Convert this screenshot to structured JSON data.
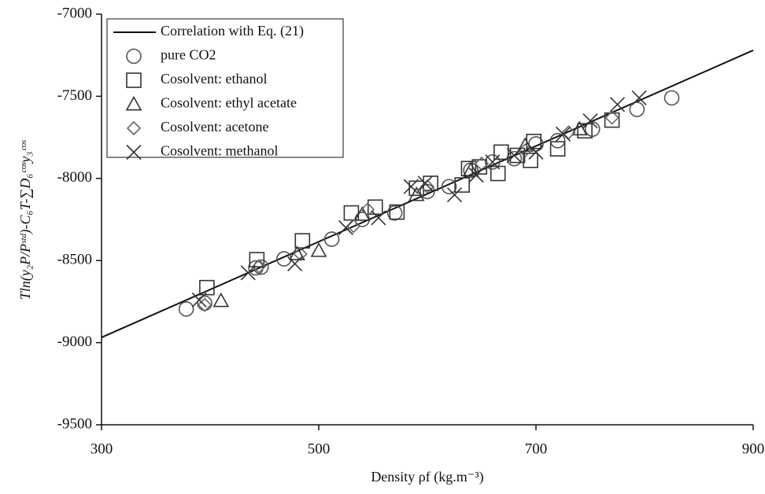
{
  "chart_data": {
    "type": "scatter",
    "xlabel": "Density ρf (kg.m⁻³)",
    "ylabel": "Tln(y₂P/Pˢᵗᵈ)-C₆T-∑D₆ᶜᵒˢy₃ᶜᵒˢ",
    "xlim": [
      300,
      900
    ],
    "xticks": [
      300,
      500,
      700,
      900
    ],
    "ylim": [
      -9500,
      -7000
    ],
    "yticks": [
      -9500,
      -9000,
      -8500,
      -8000,
      -7500,
      -7000
    ],
    "line": {
      "name": "Correlation with Eq. (21)",
      "color": "#111111",
      "x": [
        300,
        900
      ],
      "y": [
        -8968,
        -7220
      ]
    },
    "series": [
      {
        "name": "pure CO2",
        "marker": "circle",
        "color": "#555555",
        "x": [
          378,
          395,
          442,
          447,
          468,
          512,
          540,
          570,
          600,
          620,
          640,
          660,
          680,
          700,
          720,
          752,
          793,
          825
        ],
        "y": [
          -8795,
          -8760,
          -8545,
          -8540,
          -8490,
          -8370,
          -8250,
          -8210,
          -8080,
          -8050,
          -7950,
          -7900,
          -7880,
          -7790,
          -7770,
          -7700,
          -7580,
          -7510
        ]
      },
      {
        "name": "Cosolvent: ethanol",
        "marker": "square",
        "color": "#333333",
        "x": [
          397,
          443,
          485,
          530,
          552,
          572,
          590,
          603,
          632,
          638,
          648,
          665,
          668,
          683,
          695,
          698,
          720,
          745,
          770
        ],
        "y": [
          -8665,
          -8495,
          -8380,
          -8210,
          -8175,
          -8205,
          -8060,
          -8030,
          -8040,
          -7940,
          -7930,
          -7970,
          -7840,
          -7860,
          -7890,
          -7775,
          -7820,
          -7710,
          -7645
        ]
      },
      {
        "name": "Cosolvent: ethyl acetate",
        "marker": "triangle",
        "color": "#333333",
        "x": [
          410,
          480,
          500,
          540,
          590,
          640,
          690,
          740
        ],
        "y": [
          -8745,
          -8460,
          -8440,
          -8220,
          -8100,
          -7950,
          -7800,
          -7700
        ]
      },
      {
        "name": "Cosolvent: acetone",
        "marker": "diamond",
        "color": "#666666",
        "x": [
          395,
          445,
          483,
          532,
          545,
          600,
          650,
          690,
          730,
          770
        ],
        "y": [
          -8770,
          -8535,
          -8460,
          -8290,
          -8190,
          -8050,
          -7910,
          -7830,
          -7720,
          -7630
        ]
      },
      {
        "name": "Cosolvent: methanol",
        "marker": "cross",
        "color": "#333333",
        "x": [
          390,
          435,
          478,
          525,
          555,
          585,
          598,
          625,
          645,
          660,
          680,
          700,
          725,
          750,
          775,
          795
        ],
        "y": [
          -8740,
          -8575,
          -8520,
          -8300,
          -8240,
          -8050,
          -8030,
          -8100,
          -7980,
          -7900,
          -7860,
          -7840,
          -7730,
          -7650,
          -7550,
          -7510
        ]
      }
    ]
  }
}
